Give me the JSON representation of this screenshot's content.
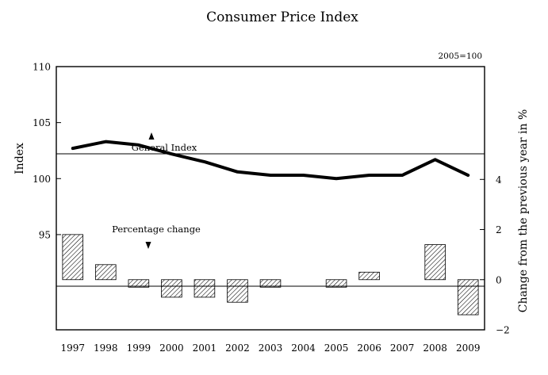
{
  "chart_data": {
    "type": "bar+line",
    "title": "Consumer Price Index",
    "base_note": "2005=100",
    "categories": [
      "1997",
      "1998",
      "1999",
      "2000",
      "2001",
      "2002",
      "2003",
      "2004",
      "2005",
      "2006",
      "2007",
      "2008",
      "2009"
    ],
    "series": [
      {
        "name": "General Index",
        "type": "line",
        "axis": "left",
        "values": [
          102.7,
          103.3,
          103.0,
          102.2,
          101.5,
          100.6,
          100.3,
          100.3,
          100.0,
          100.3,
          100.3,
          101.7,
          100.3
        ]
      },
      {
        "name": "Percentage change",
        "type": "bar",
        "axis": "right",
        "values": [
          1.8,
          0.6,
          -0.3,
          -0.7,
          -0.7,
          -0.9,
          -0.3,
          0.0,
          -0.3,
          0.3,
          0.0,
          1.4,
          -1.4
        ]
      }
    ],
    "y_left": {
      "label": "Index",
      "ticks": [
        "110",
        "105",
        "100",
        "95"
      ],
      "tick_values": [
        110,
        105,
        100,
        95
      ],
      "range": [
        86.5,
        110
      ]
    },
    "y_right": {
      "label": "Change from the previous year in %",
      "ticks": [
        "4",
        "2",
        "0",
        "−2"
      ],
      "tick_values": [
        4,
        2,
        0,
        -2
      ],
      "range": [
        -2,
        8.5
      ]
    },
    "annotations": {
      "line_label": "General Index",
      "bar_label": "Percentage change"
    },
    "colors": {
      "line": "#000000",
      "bar_hatch": "#000000"
    }
  }
}
